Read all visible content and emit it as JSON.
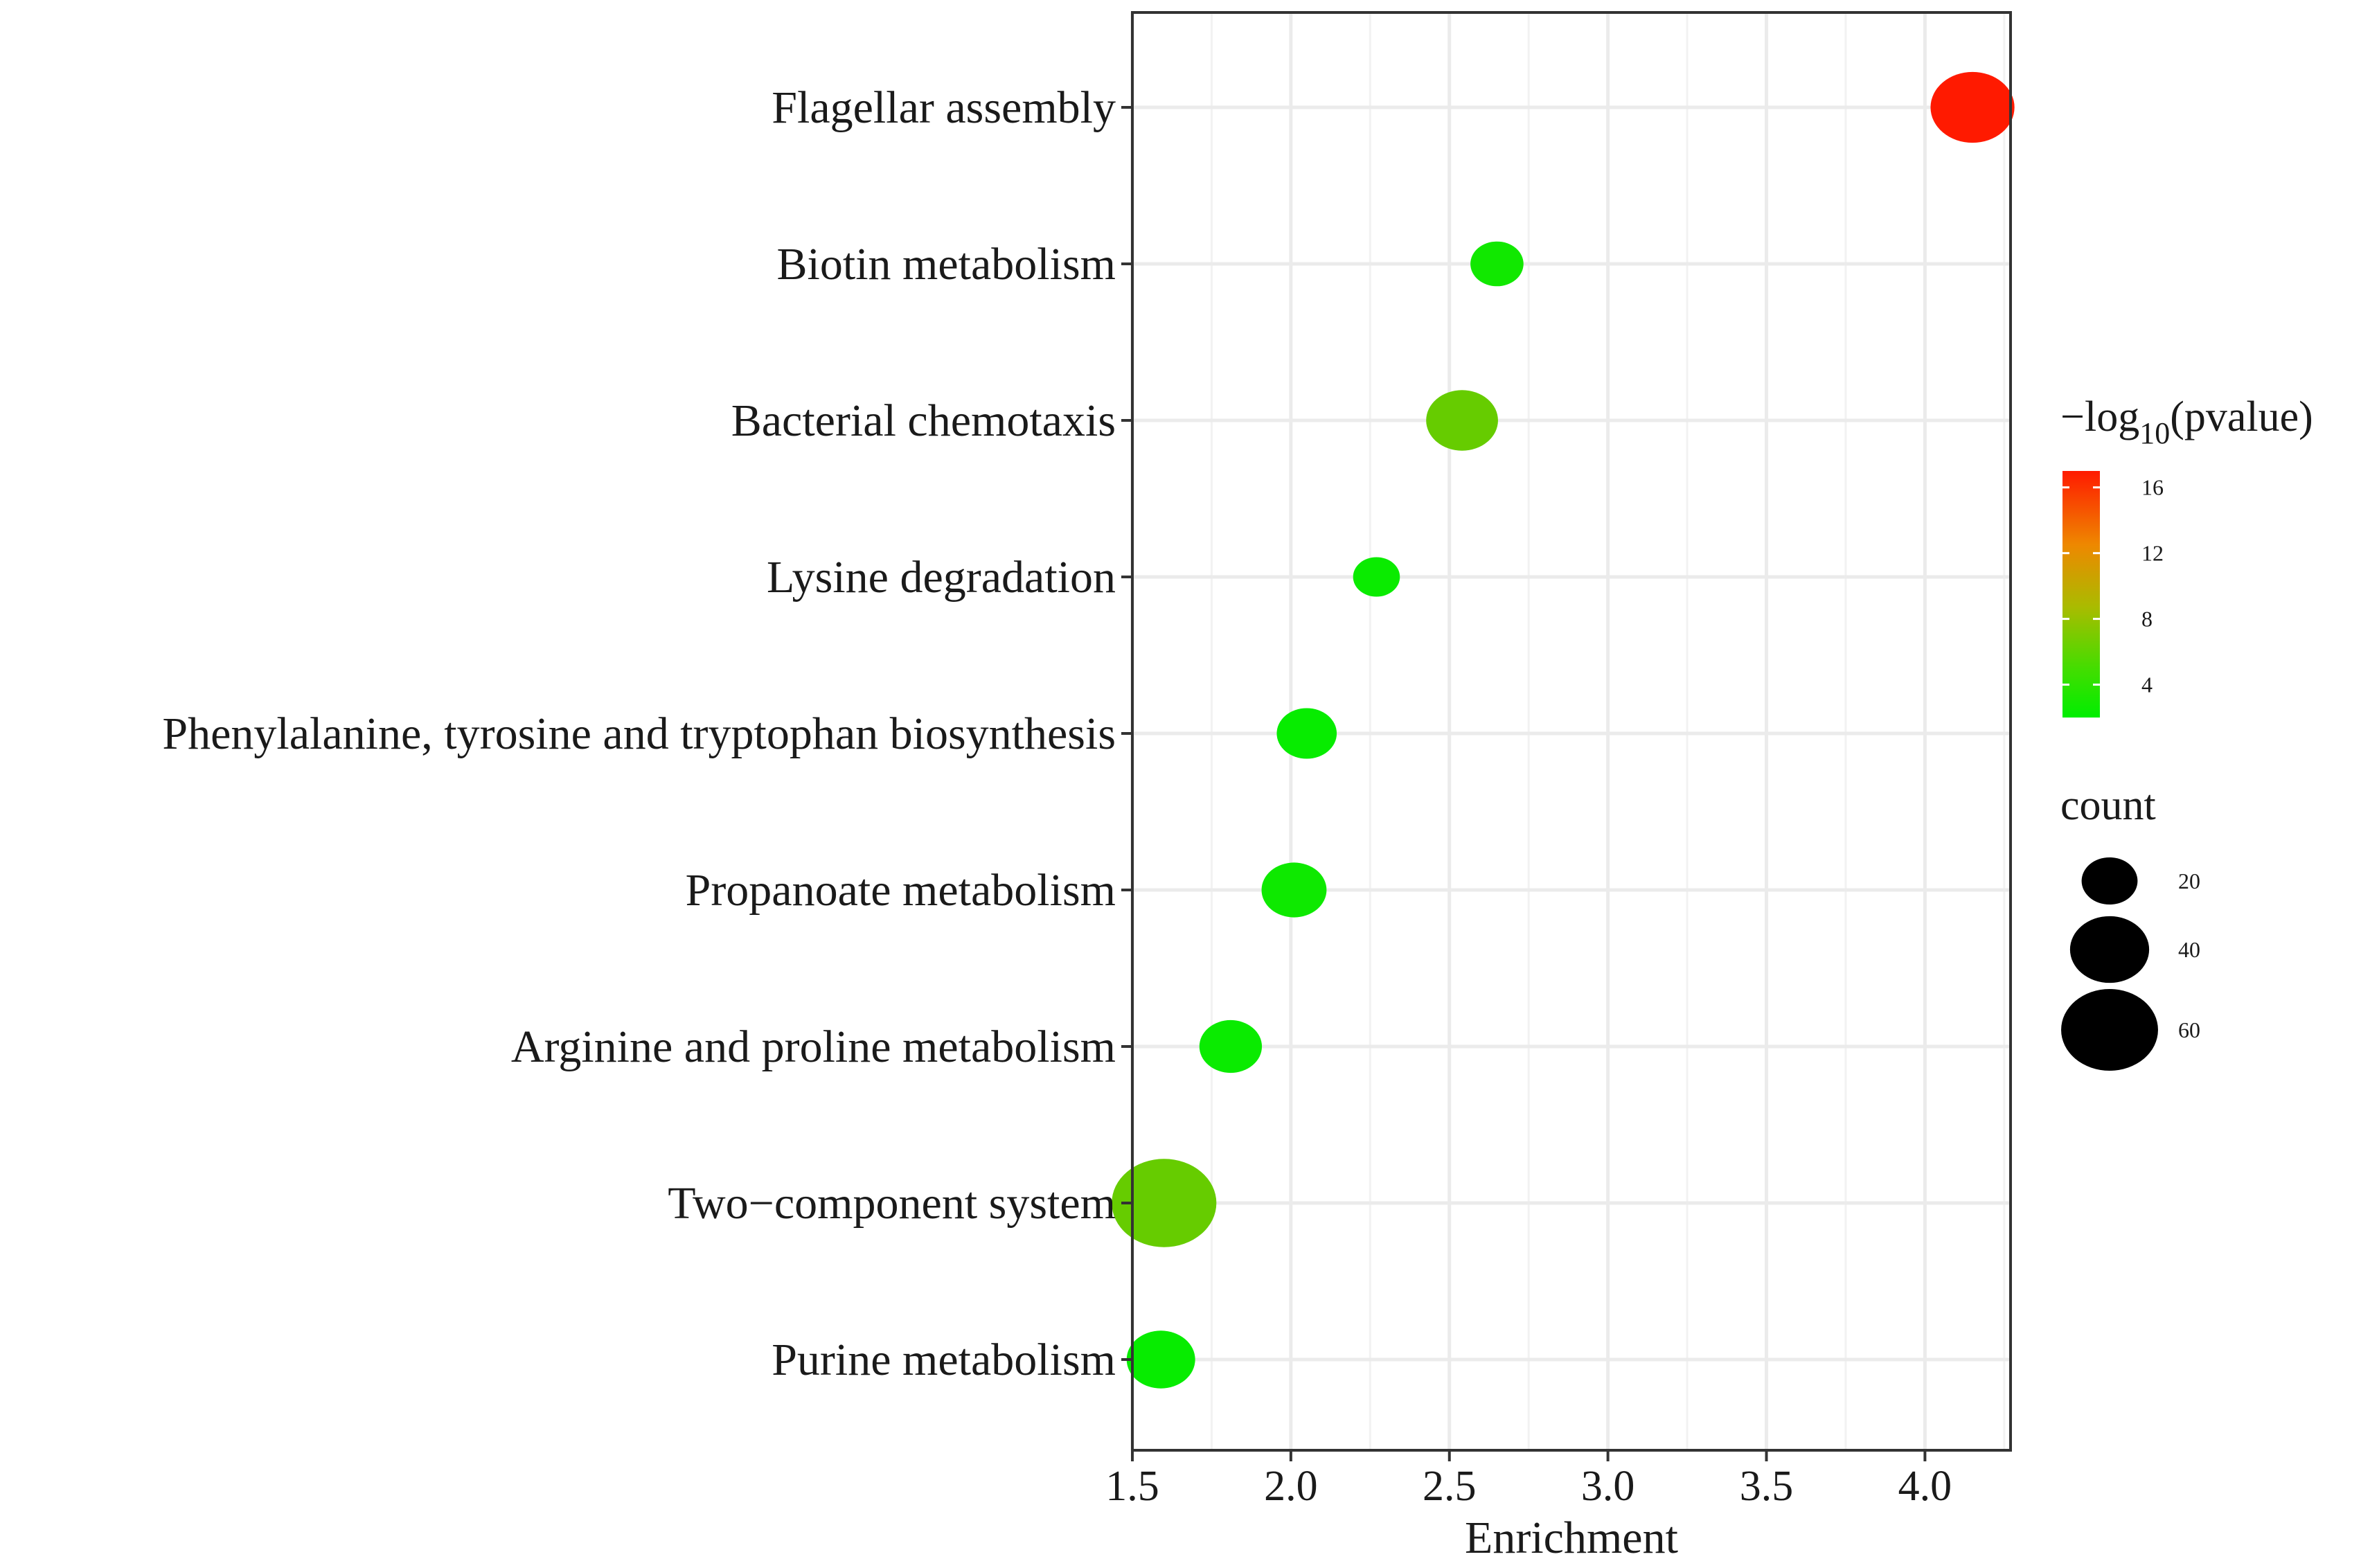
{
  "chart_data": {
    "type": "scatter",
    "subtype": "bubble",
    "x_label": "Enrichment",
    "xlim": [
      1.5,
      4.27
    ],
    "x_ticks": [
      1.5,
      2.0,
      2.5,
      3.0,
      3.5,
      4.0
    ],
    "x_tick_labels": [
      "1.5",
      "2.0",
      "2.5",
      "3.0",
      "3.5",
      "4.0"
    ],
    "categories": [
      "Flagellar assembly",
      "Biotin metabolism",
      "Bacterial chemotaxis",
      "Lysine degradation",
      "Phenylalanine, tyrosine and tryptophan biosynthesis",
      "Propanoate metabolism",
      "Arginine and proline metabolism",
      "Two−component system",
      "Purine metabolism"
    ],
    "points": [
      {
        "pathway": "Flagellar assembly",
        "enrichment": 4.15,
        "neg_log10_pvalue": 17,
        "count": 45
      },
      {
        "pathway": "Biotin metabolism",
        "enrichment": 2.65,
        "neg_log10_pvalue": 2.5,
        "count": 18
      },
      {
        "pathway": "Bacterial chemotaxis",
        "enrichment": 2.54,
        "neg_log10_pvalue": 5,
        "count": 33
      },
      {
        "pathway": "Lysine degradation",
        "enrichment": 2.27,
        "neg_log10_pvalue": 2.3,
        "count": 14
      },
      {
        "pathway": "Phenylalanine, tyrosine and tryptophan biosynthesis",
        "enrichment": 2.05,
        "neg_log10_pvalue": 2.2,
        "count": 23
      },
      {
        "pathway": "Propanoate metabolism",
        "enrichment": 2.01,
        "neg_log10_pvalue": 2.4,
        "count": 27
      },
      {
        "pathway": "Arginine and proline metabolism",
        "enrichment": 1.81,
        "neg_log10_pvalue": 2.3,
        "count": 25
      },
      {
        "pathway": "Two−component system",
        "enrichment": 1.6,
        "neg_log10_pvalue": 5,
        "count": 70
      },
      {
        "pathway": "Purine metabolism",
        "enrichment": 1.59,
        "neg_log10_pvalue": 2.2,
        "count": 30
      }
    ],
    "color_legend": {
      "title_prefix": "−log",
      "title_sub": "10",
      "title_suffix": "(pvalue)",
      "range": [
        2,
        17
      ],
      "breaks": [
        4,
        8,
        12,
        16
      ],
      "break_labels": [
        "4",
        "8",
        "12",
        "16"
      ],
      "low_color": "#00ee00",
      "mid_color": "#66cc00",
      "high_color": "#ff1a00"
    },
    "size_legend": {
      "title": "count",
      "breaks": [
        20,
        40,
        60
      ],
      "break_labels": [
        "20",
        "40",
        "60"
      ]
    },
    "grid": true,
    "legend_position": "right"
  }
}
